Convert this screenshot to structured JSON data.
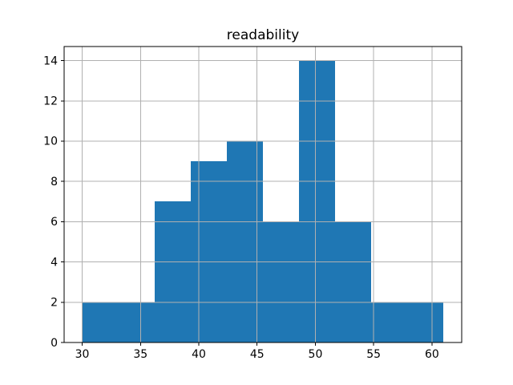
{
  "chart_data": {
    "type": "bar",
    "subtype": "histogram",
    "title": "readability",
    "bin_edges": [
      30.0,
      33.1,
      36.2,
      39.3,
      42.4,
      45.5,
      48.6,
      51.7,
      54.8,
      57.9,
      61.0
    ],
    "counts": [
      2,
      2,
      7,
      9,
      10,
      6,
      14,
      6,
      2,
      2
    ],
    "xlabel": "",
    "ylabel": "",
    "xticks": [
      30,
      35,
      40,
      45,
      50,
      55,
      60
    ],
    "xtick_labels": [
      "30",
      "35",
      "40",
      "45",
      "50",
      "55",
      "60"
    ],
    "yticks": [
      0,
      2,
      4,
      6,
      8,
      10,
      12,
      14
    ],
    "ytick_labels": [
      "0",
      "2",
      "4",
      "6",
      "8",
      "10",
      "12",
      "14"
    ],
    "xlim": [
      28.45,
      62.55
    ],
    "ylim": [
      0,
      14.7
    ],
    "grid": true,
    "grid_above_bars": true,
    "legend": null,
    "colors": {
      "bar": "#1f77b4",
      "grid": "#b0b0b0",
      "spine": "#000000",
      "text": "#000000",
      "background": "#ffffff"
    }
  }
}
